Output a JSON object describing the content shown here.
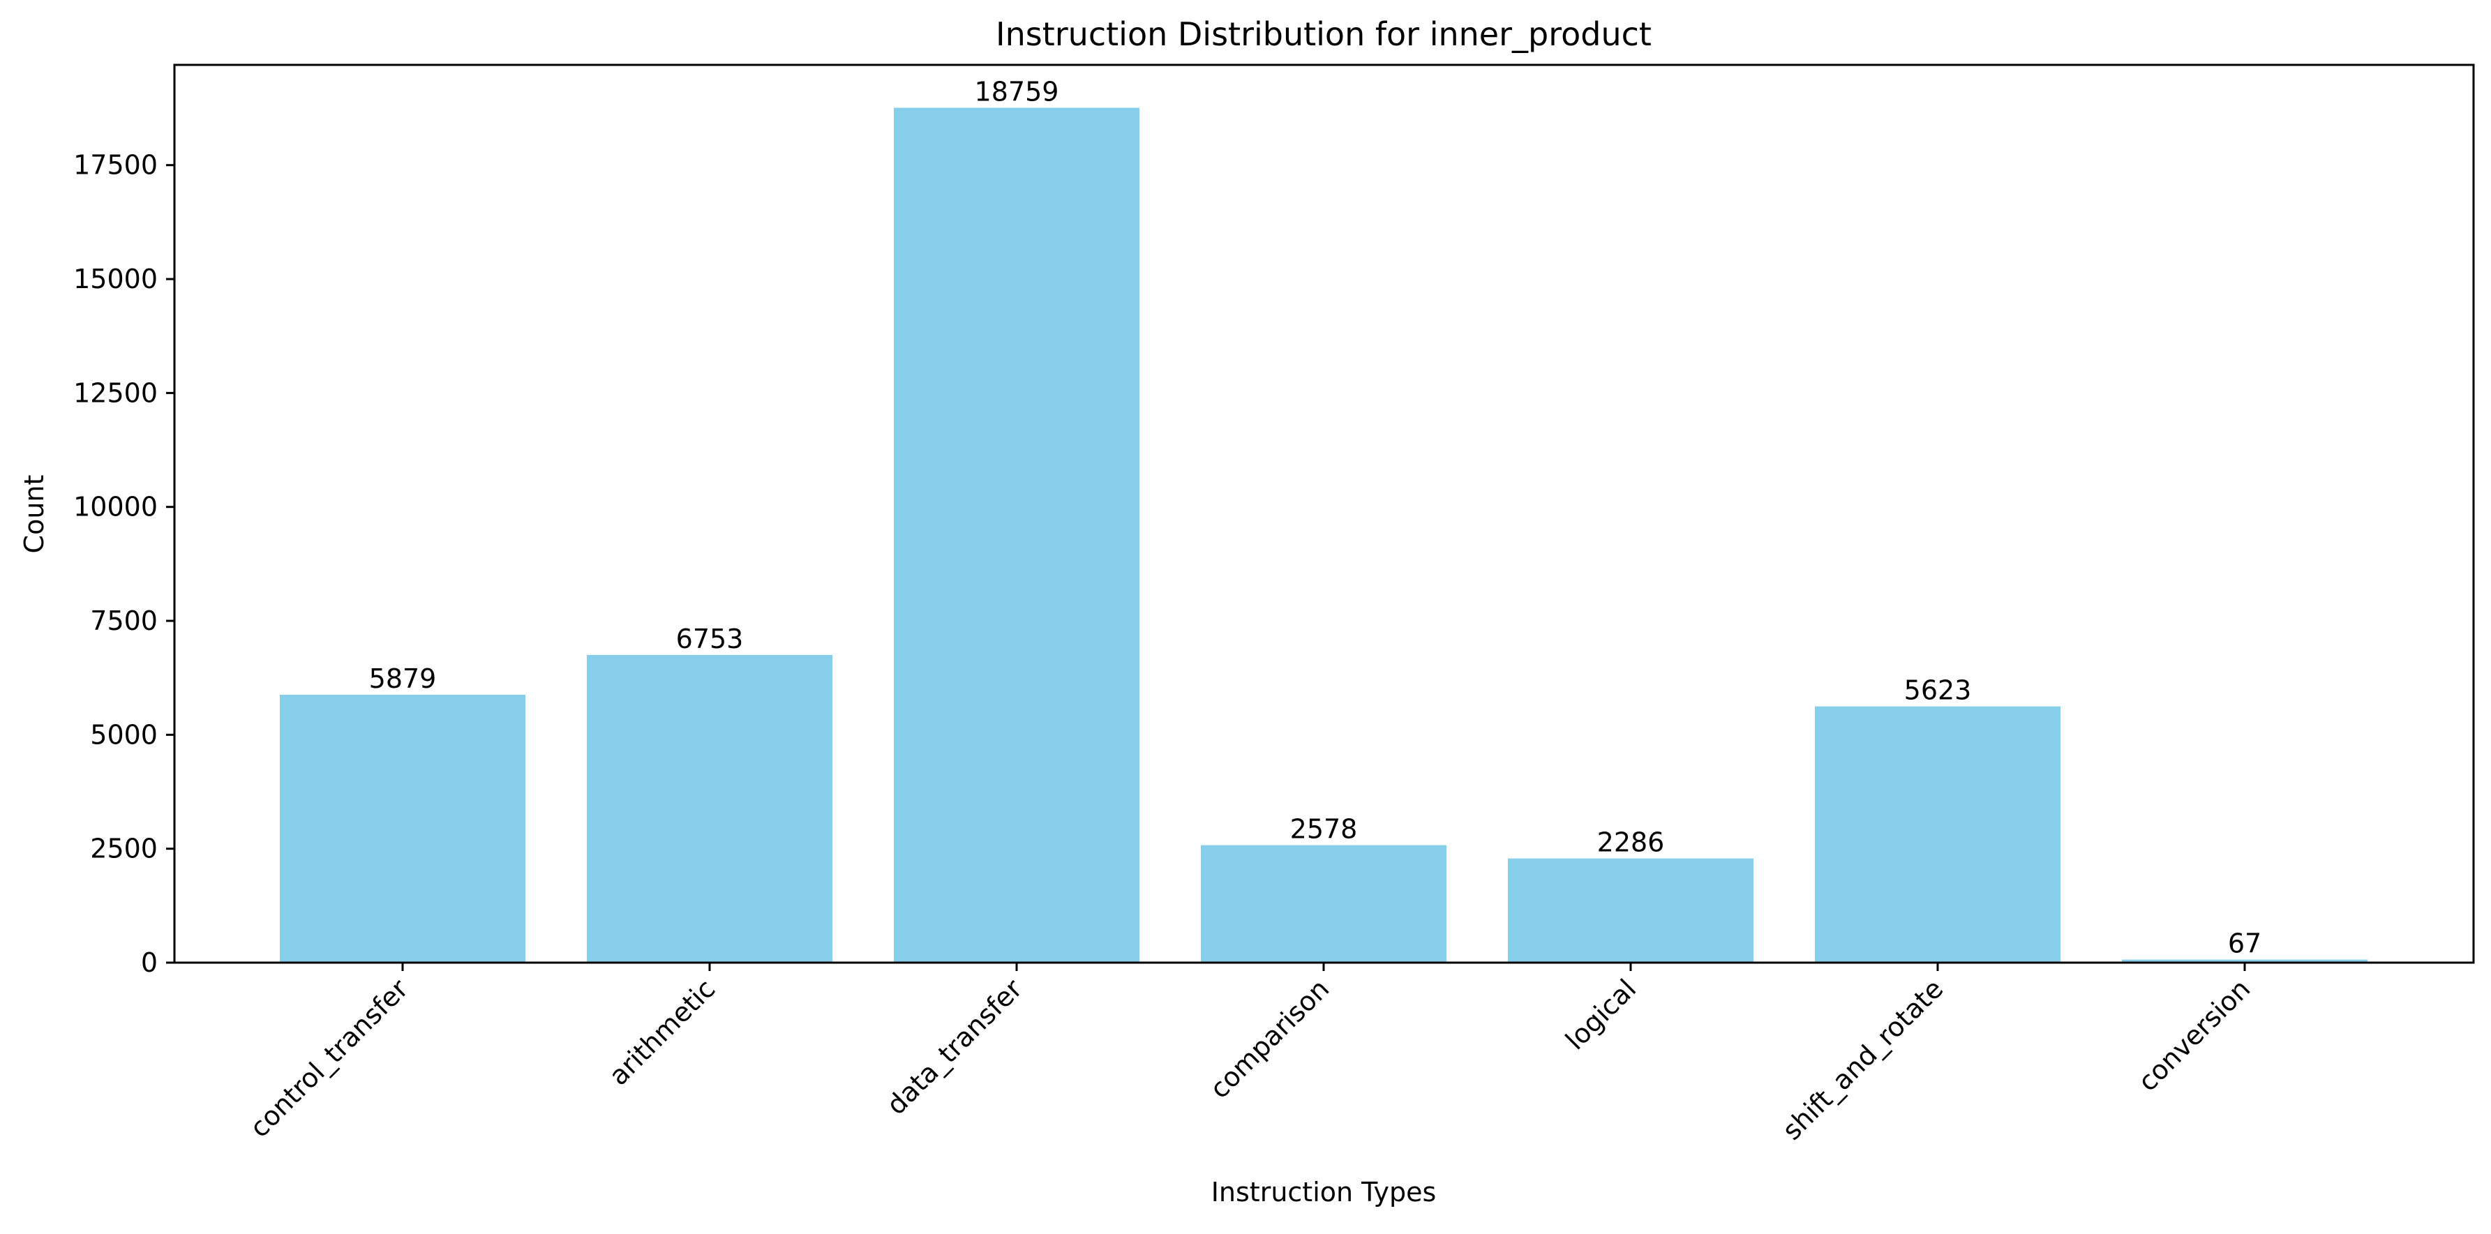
{
  "chart_data": {
    "type": "bar",
    "title": "Instruction Distribution for inner_product",
    "xlabel": "Instruction Types",
    "ylabel": "Count",
    "categories": [
      "control_transfer",
      "arithmetic",
      "data_transfer",
      "comparison",
      "logical",
      "shift_and_rotate",
      "conversion"
    ],
    "values": [
      5879,
      6753,
      18759,
      2578,
      2286,
      5623,
      67
    ],
    "value_labels": [
      "5879",
      "6753",
      "18759",
      "2578",
      "2286",
      "5623",
      "67"
    ],
    "ylim": [
      0,
      19700
    ],
    "yticks": [
      0,
      2500,
      5000,
      7500,
      10000,
      12500,
      15000,
      17500
    ],
    "ytick_labels": [
      "0",
      "2500",
      "5000",
      "7500",
      "10000",
      "12500",
      "15000",
      "17500"
    ],
    "grid": false,
    "bar_color": "#87CEEB"
  }
}
